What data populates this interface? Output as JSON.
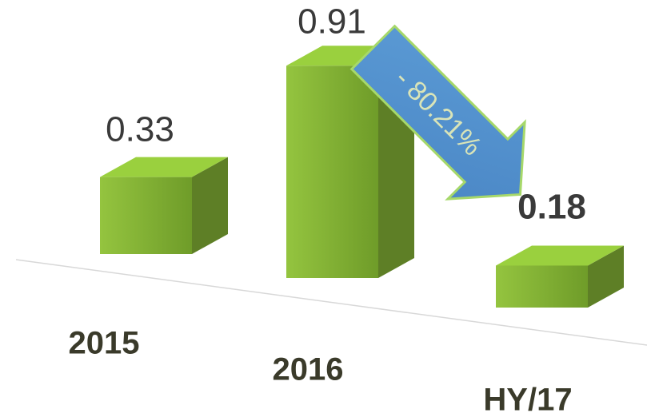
{
  "chart_data": {
    "type": "bar",
    "categories": [
      "2015",
      "2016",
      "HY/17"
    ],
    "values": [
      0.33,
      0.91,
      0.18
    ],
    "color": "#86b536",
    "annotations": [
      "- 80.21%"
    ]
  }
}
